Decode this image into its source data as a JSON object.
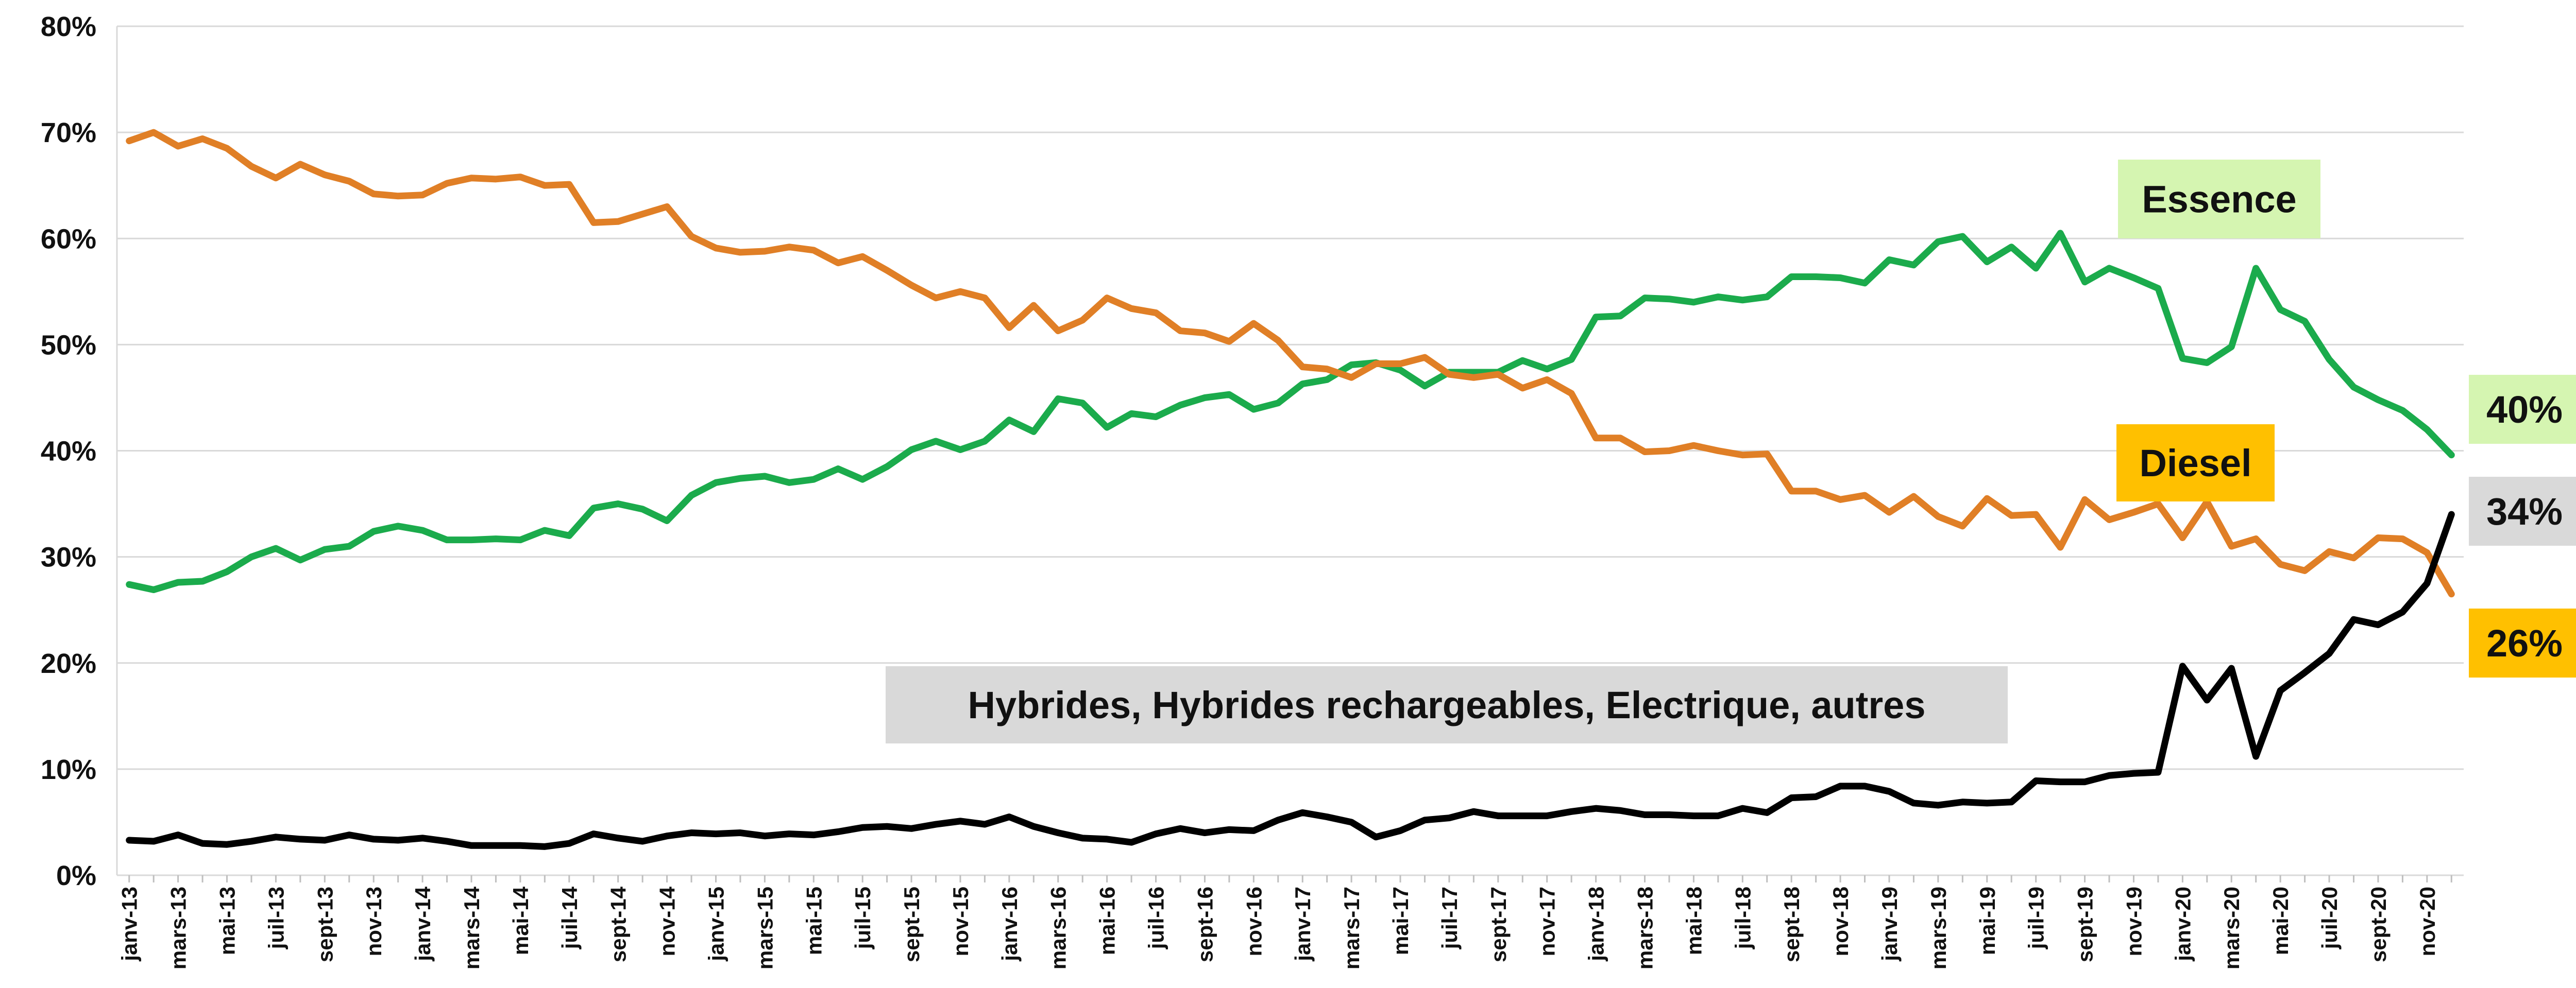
{
  "chart_data": {
    "type": "line",
    "categories": [
      "janv-13",
      null,
      "mars-13",
      null,
      "mai-13",
      null,
      "juil-13",
      null,
      "sept-13",
      null,
      "nov-13",
      null,
      "janv-14",
      null,
      "mars-14",
      null,
      "mai-14",
      null,
      "juil-14",
      null,
      "sept-14",
      null,
      "nov-14",
      null,
      "janv-15",
      null,
      "mars-15",
      null,
      "mai-15",
      null,
      "juil-15",
      null,
      "sept-15",
      null,
      "nov-15",
      null,
      "janv-16",
      null,
      "mars-16",
      null,
      "mai-16",
      null,
      "juil-16",
      null,
      "sept-16",
      null,
      "nov-16",
      null,
      "janv-17",
      null,
      "mars-17",
      null,
      "mai-17",
      null,
      "juil-17",
      null,
      "sept-17",
      null,
      "nov-17",
      null,
      "janv-18",
      null,
      "mars-18",
      null,
      "mai-18",
      null,
      "juil-18",
      null,
      "sept-18",
      null,
      "nov-18",
      null,
      "janv-19",
      null,
      "mars-19",
      null,
      "mai-19",
      null,
      "juil-19",
      null,
      "sept-19",
      null,
      "nov-19",
      null,
      "janv-20",
      null,
      "mars-20",
      null,
      "mai-20",
      null,
      "juil-20",
      null,
      "sept-20",
      null,
      "nov-20",
      null
    ],
    "series": [
      {
        "name": "Essence",
        "color": "#1bab4c",
        "end_label": "40%",
        "values": [
          27.4,
          26.9,
          27.6,
          27.7,
          28.6,
          30,
          30.8,
          29.7,
          30.7,
          31,
          32.4,
          32.9,
          32.5,
          31.6,
          31.6,
          31.7,
          31.6,
          32.5,
          32,
          34.6,
          35,
          34.5,
          33.4,
          35.8,
          37,
          37.4,
          37.6,
          37,
          37.3,
          38.3,
          37.3,
          38.5,
          40.1,
          40.9,
          40.1,
          40.9,
          42.9,
          41.8,
          44.9,
          44.5,
          42.2,
          43.5,
          43.2,
          44.3,
          45,
          45.3,
          43.9,
          44.5,
          46.3,
          46.7,
          48.1,
          48.3,
          47.6,
          46.1,
          47.4,
          47.4,
          47.4,
          48.5,
          47.7,
          48.6,
          52.6,
          52.7,
          54.4,
          54.3,
          54,
          54.5,
          54.2,
          54.5,
          56.4,
          56.4,
          56.3,
          55.8,
          58,
          57.5,
          59.7,
          60.2,
          57.8,
          59.2,
          57.2,
          60.5,
          55.9,
          57.2,
          56.3,
          55.3,
          48.7,
          48.3,
          49.8,
          57.2,
          53.3,
          52.2,
          48.6,
          46,
          44.8,
          43.8,
          42,
          39.6
        ]
      },
      {
        "name": "Diesel",
        "color": "#e07f26",
        "end_label": "26%",
        "values": [
          69.2,
          70,
          68.7,
          69.4,
          68.5,
          66.8,
          65.7,
          67,
          66,
          65.4,
          64.2,
          64,
          64.1,
          65.2,
          65.7,
          65.6,
          65.8,
          65,
          65.1,
          61.5,
          61.6,
          62.3,
          63,
          60.2,
          59.1,
          58.7,
          58.8,
          59.2,
          58.9,
          57.7,
          58.3,
          57,
          55.6,
          54.4,
          55,
          54.4,
          51.6,
          53.7,
          51.3,
          52.3,
          54.4,
          53.4,
          53,
          51.3,
          51.1,
          50.3,
          52,
          50.4,
          47.9,
          47.7,
          46.9,
          48.2,
          48.2,
          48.8,
          47.2,
          46.9,
          47.2,
          45.9,
          46.7,
          45.4,
          41.2,
          41.2,
          39.9,
          40,
          40.5,
          40,
          39.6,
          39.7,
          36.2,
          36.2,
          35.4,
          35.8,
          34.2,
          35.7,
          33.8,
          32.9,
          35.5,
          33.9,
          34,
          30.9,
          35.4,
          33.5,
          34.2,
          35,
          31.8,
          35.2,
          31,
          31.7,
          29.3,
          28.7,
          30.5,
          29.9,
          31.8,
          31.7,
          30.4,
          26.5
        ]
      },
      {
        "name": "Hybrides, Hybrides rechargeables, Electrique, autres",
        "color": "#000000",
        "end_label": "34%",
        "values": [
          3.3,
          3.2,
          3.8,
          3,
          2.9,
          3.2,
          3.6,
          3.4,
          3.3,
          3.8,
          3.4,
          3.3,
          3.5,
          3.2,
          2.8,
          2.8,
          2.8,
          2.7,
          3,
          3.9,
          3.5,
          3.2,
          3.7,
          4,
          3.9,
          4,
          3.7,
          3.9,
          3.8,
          4.1,
          4.5,
          4.6,
          4.4,
          4.8,
          5.1,
          4.8,
          5.5,
          4.6,
          4,
          3.5,
          3.4,
          3.1,
          3.9,
          4.4,
          4,
          4.3,
          4.2,
          5.2,
          5.9,
          5.5,
          5,
          3.6,
          4.2,
          5.2,
          5.4,
          6,
          5.6,
          5.6,
          5.6,
          6,
          6.3,
          6.1,
          5.7,
          5.7,
          5.6,
          5.6,
          6.3,
          5.9,
          7.3,
          7.4,
          8.4,
          8.4,
          7.9,
          6.8,
          6.6,
          6.9,
          6.8,
          6.9,
          8.9,
          8.8,
          8.8,
          9.4,
          9.6,
          9.7,
          19.7,
          16.5,
          19.5,
          11.2,
          17.4,
          19.1,
          20.9,
          24.1,
          23.6,
          24.8,
          27.5,
          34
        ]
      }
    ],
    "ylim": [
      0,
      80
    ],
    "yticks": [
      {
        "value": 0,
        "label": "0%"
      },
      {
        "value": 10,
        "label": "10%"
      },
      {
        "value": 20,
        "label": "20%"
      },
      {
        "value": 30,
        "label": "30%"
      },
      {
        "value": 40,
        "label": "40%"
      },
      {
        "value": 50,
        "label": "50%"
      },
      {
        "value": 60,
        "label": "60%"
      },
      {
        "value": 70,
        "label": "70%"
      },
      {
        "value": 80,
        "label": "80%"
      }
    ],
    "grid": true
  }
}
